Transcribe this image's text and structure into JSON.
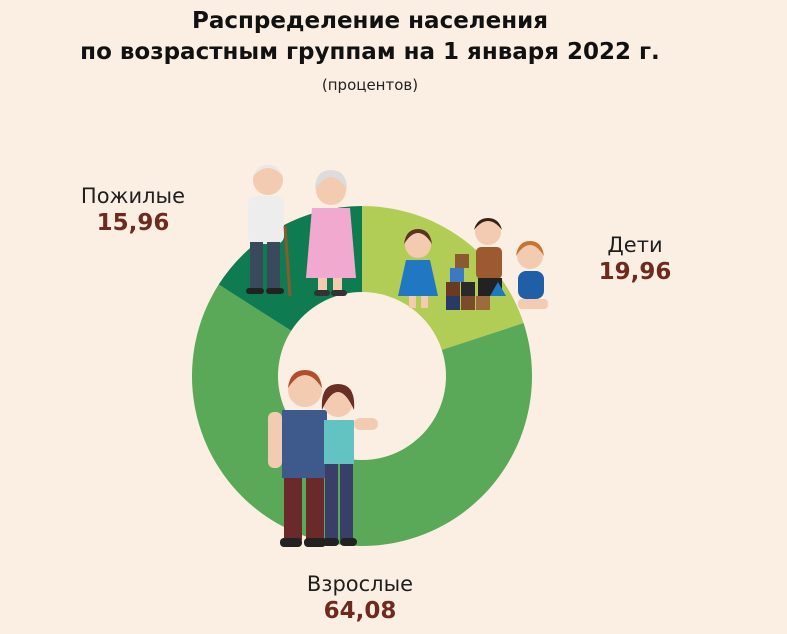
{
  "chart_data": {
    "type": "pie",
    "title_line1": "Распределение населения",
    "title_line2": "по возрастным группам на 1 января 2022 г.",
    "subtitle": "(процентов)",
    "slices": [
      {
        "name": "Дети",
        "value": 19.96,
        "display": "19,96",
        "color": "#B2CD55"
      },
      {
        "name": "Взрослые",
        "value": 64.08,
        "display": "64,08",
        "color": "#5AA958"
      },
      {
        "name": "Пожилые",
        "value": 15.96,
        "display": "15,96",
        "color": "#0E7C50"
      }
    ]
  }
}
